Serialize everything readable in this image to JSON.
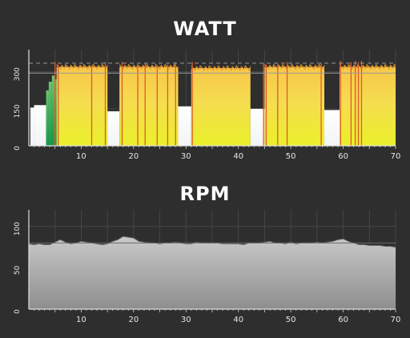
{
  "chart_data": [
    {
      "type": "area",
      "title": "WATT",
      "xlabel": "",
      "ylabel": "",
      "xlim": [
        0,
        70
      ],
      "ylim": [
        0,
        390
      ],
      "x_ticks": [
        10,
        20,
        30,
        40,
        50,
        60,
        70
      ],
      "y_ticks": [
        0,
        150,
        300
      ],
      "grid": true,
      "reference_lines": [
        {
          "value": 295,
          "style": "solid"
        },
        {
          "value": 335,
          "style": "dashed"
        }
      ],
      "series": [
        {
          "segments": [
            {
              "x0": 0.3,
              "x1": 1.0,
              "value": 155,
              "zone": "recovery"
            },
            {
              "x0": 1.0,
              "x1": 3.3,
              "value": 165,
              "zone": "recovery"
            },
            {
              "x0": 3.3,
              "x1": 3.8,
              "value": 225,
              "zone": "endurance"
            },
            {
              "x0": 3.8,
              "x1": 4.4,
              "value": 260,
              "zone": "endurance"
            },
            {
              "x0": 4.4,
              "x1": 4.9,
              "value": 285,
              "zone": "endurance"
            },
            {
              "x0": 4.9,
              "x1": 5.3,
              "value": 270,
              "zone": "endurance"
            },
            {
              "x0": 5.3,
              "x1": 15.0,
              "value": 320,
              "zone": "threshold"
            },
            {
              "x0": 15.0,
              "x1": 17.3,
              "value": 140,
              "zone": "recovery"
            },
            {
              "x0": 17.3,
              "x1": 28.5,
              "value": 320,
              "zone": "threshold"
            },
            {
              "x0": 28.5,
              "x1": 31.0,
              "value": 160,
              "zone": "recovery"
            },
            {
              "x0": 31.0,
              "x1": 42.3,
              "value": 315,
              "zone": "threshold"
            },
            {
              "x0": 42.3,
              "x1": 45.0,
              "value": 150,
              "zone": "recovery"
            },
            {
              "x0": 45.0,
              "x1": 56.4,
              "value": 320,
              "zone": "threshold"
            },
            {
              "x0": 56.4,
              "x1": 59.3,
              "value": 145,
              "zone": "recovery"
            },
            {
              "x0": 59.3,
              "x1": 70.0,
              "value": 320,
              "zone": "threshold"
            }
          ],
          "spikes": [
            {
              "x": 5.0,
              "value": 340
            },
            {
              "x": 5.6,
              "value": 330
            },
            {
              "x": 12.0,
              "value": 325
            },
            {
              "x": 14.6,
              "value": 340
            },
            {
              "x": 17.8,
              "value": 340
            },
            {
              "x": 20.8,
              "value": 330
            },
            {
              "x": 22.2,
              "value": 335
            },
            {
              "x": 24.5,
              "value": 325
            },
            {
              "x": 26.5,
              "value": 330
            },
            {
              "x": 28.0,
              "value": 340
            },
            {
              "x": 31.2,
              "value": 340
            },
            {
              "x": 44.8,
              "value": 335
            },
            {
              "x": 45.3,
              "value": 330
            },
            {
              "x": 47.5,
              "value": 335
            },
            {
              "x": 49.3,
              "value": 340
            },
            {
              "x": 55.8,
              "value": 335
            },
            {
              "x": 59.5,
              "value": 345
            },
            {
              "x": 61.5,
              "value": 340
            },
            {
              "x": 62.3,
              "value": 345
            },
            {
              "x": 62.9,
              "value": 340
            },
            {
              "x": 63.5,
              "value": 345
            }
          ]
        }
      ]
    },
    {
      "type": "area",
      "title": "RPM",
      "xlabel": "",
      "ylabel": "",
      "xlim": [
        0,
        70
      ],
      "ylim": [
        0,
        120
      ],
      "x_ticks": [
        10,
        20,
        30,
        40,
        50,
        60,
        70
      ],
      "y_ticks": [
        0,
        50,
        100
      ],
      "grid": true,
      "reference_lines": [
        {
          "value": 80,
          "style": "solid"
        }
      ],
      "series": [
        {
          "x": [
            0,
            1,
            2,
            3,
            4,
            5,
            6,
            7,
            8,
            9,
            10,
            11,
            12,
            13,
            14,
            15,
            16,
            17,
            18,
            19,
            20,
            21,
            22,
            23,
            24,
            25,
            26,
            27,
            28,
            29,
            30,
            31,
            32,
            33,
            34,
            35,
            36,
            37,
            38,
            39,
            40,
            41,
            42,
            43,
            44,
            45,
            46,
            47,
            48,
            49,
            50,
            51,
            52,
            53,
            54,
            55,
            56,
            57,
            58,
            59,
            60,
            61,
            62,
            63,
            64,
            65,
            66,
            67,
            68,
            69,
            70
          ],
          "values": [
            79,
            78,
            79,
            78,
            78,
            81,
            84,
            81,
            79,
            80,
            82,
            81,
            80,
            79,
            78,
            79,
            82,
            84,
            88,
            87,
            86,
            82,
            81,
            80,
            80,
            79,
            80,
            80,
            81,
            80,
            79,
            79,
            81,
            80,
            80,
            80,
            80,
            79,
            79,
            79,
            79,
            78,
            80,
            80,
            80,
            81,
            82,
            80,
            80,
            79,
            81,
            79,
            80,
            80,
            80,
            81,
            80,
            81,
            82,
            84,
            85,
            82,
            80,
            78,
            78,
            77,
            77,
            77,
            76,
            76,
            75
          ]
        }
      ]
    }
  ]
}
